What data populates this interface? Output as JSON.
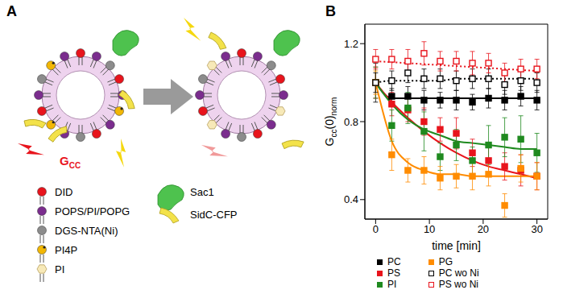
{
  "panel_labels": [
    "A",
    "B"
  ],
  "diagram": {
    "signal_label": {
      "main": "G",
      "sub": "CC"
    },
    "legend": [
      {
        "label": "DID",
        "color": "#e8141c"
      },
      {
        "label": "POPS/PI/POPG",
        "color": "#7b2d8e"
      },
      {
        "label": "DGS-NTA(Ni)",
        "color": "#8c8c8c"
      },
      {
        "label": "PI4P",
        "color": "#f2b705"
      },
      {
        "label": "PI",
        "color": "#f7e9b8"
      },
      {
        "label": "Sac1",
        "color": "#4ec24e"
      },
      {
        "label": "SidC-CFP",
        "color": "#f3e24a"
      }
    ]
  },
  "chart_data": {
    "type": "scatter",
    "x_label": "time [min]",
    "y_label": [
      "G",
      "cc",
      "(0)",
      "norm"
    ],
    "x": [
      0,
      3,
      6,
      9,
      12,
      15,
      18,
      21,
      24,
      27,
      30
    ],
    "xlim": [
      -2,
      32
    ],
    "xticks": [
      0,
      10,
      20,
      30
    ],
    "ylim": [
      0.3,
      1.3
    ],
    "yticks": [
      0.4,
      0.8,
      1.2
    ],
    "legend": "bottom",
    "series": [
      {
        "name": "PC",
        "color": "#000000",
        "marker": "square",
        "line_style": "solid",
        "values": [
          1.0,
          0.93,
          0.93,
          0.91,
          0.91,
          0.91,
          0.9,
          0.92,
          0.91,
          0.93,
          0.91
        ],
        "errors": [
          0.1,
          0.04,
          0.05,
          0.05,
          0.04,
          0.05,
          0.04,
          0.05,
          0.05,
          0.05,
          0.05
        ],
        "fit_values": [
          1.0,
          0.92,
          0.92,
          0.92,
          0.92,
          0.92,
          0.92,
          0.92,
          0.92,
          0.92,
          0.92
        ]
      },
      {
        "name": "PS",
        "color": "#e8141c",
        "marker": "square",
        "line_style": "solid",
        "values": [
          1.0,
          0.89,
          0.86,
          0.8,
          0.76,
          0.74,
          0.64,
          0.6,
          0.57,
          0.55,
          0.52
        ],
        "errors": [
          0.08,
          0.06,
          0.06,
          0.07,
          0.06,
          0.08,
          0.07,
          0.08,
          0.07,
          0.08,
          0.07
        ],
        "fit_values": [
          1.0,
          0.9,
          0.82,
          0.75,
          0.69,
          0.64,
          0.6,
          0.57,
          0.55,
          0.53,
          0.51
        ]
      },
      {
        "name": "PI",
        "color": "#1f8a1f",
        "marker": "square",
        "line_style": "solid",
        "values": [
          1.0,
          0.78,
          0.87,
          0.75,
          0.62,
          0.68,
          0.6,
          0.68,
          0.72,
          0.71,
          0.64
        ],
        "errors": [
          0.08,
          0.08,
          0.08,
          0.1,
          0.07,
          0.08,
          0.07,
          0.1,
          0.1,
          0.12,
          0.1
        ],
        "fit_values": [
          1.0,
          0.89,
          0.81,
          0.76,
          0.73,
          0.7,
          0.69,
          0.68,
          0.67,
          0.66,
          0.66
        ]
      },
      {
        "name": "PG",
        "color": "#ff8c00",
        "marker": "square",
        "line_style": "solid",
        "values": [
          1.0,
          0.63,
          0.55,
          0.55,
          0.51,
          0.52,
          0.52,
          0.53,
          0.37,
          0.56,
          0.52
        ],
        "errors": [
          0.06,
          0.08,
          0.06,
          0.07,
          0.06,
          0.06,
          0.07,
          0.06,
          0.06,
          0.07,
          0.07
        ],
        "fit_values": [
          1.0,
          0.7,
          0.59,
          0.55,
          0.53,
          0.53,
          0.52,
          0.52,
          0.52,
          0.52,
          0.52
        ]
      },
      {
        "name": "PC wo Ni",
        "color": "#000000",
        "marker": "open-square",
        "line_style": "dotted",
        "values": [
          1.0,
          1.01,
          1.05,
          1.02,
          1.02,
          1.01,
          1.02,
          1.02,
          0.99,
          1.01,
          1.0
        ],
        "errors": [
          0.05,
          0.05,
          0.05,
          0.05,
          0.05,
          0.05,
          0.05,
          0.05,
          0.05,
          0.05,
          0.05
        ],
        "fit_values": [
          1.0,
          1.01,
          1.01,
          1.01,
          1.01,
          1.02,
          1.02,
          1.02,
          1.02,
          1.02,
          1.02
        ]
      },
      {
        "name": "PS wo Ni",
        "color": "#e8141c",
        "marker": "open-square",
        "line_style": "dotted",
        "values": [
          1.12,
          1.12,
          1.11,
          1.15,
          1.11,
          1.11,
          1.1,
          1.1,
          1.05,
          1.07,
          1.07
        ],
        "errors": [
          0.05,
          0.05,
          0.06,
          0.06,
          0.05,
          0.05,
          0.06,
          0.05,
          0.05,
          0.05,
          0.05
        ],
        "fit_values": [
          1.11,
          1.105,
          1.1,
          1.095,
          1.09,
          1.085,
          1.08,
          1.075,
          1.07,
          1.065,
          1.06
        ]
      }
    ]
  }
}
